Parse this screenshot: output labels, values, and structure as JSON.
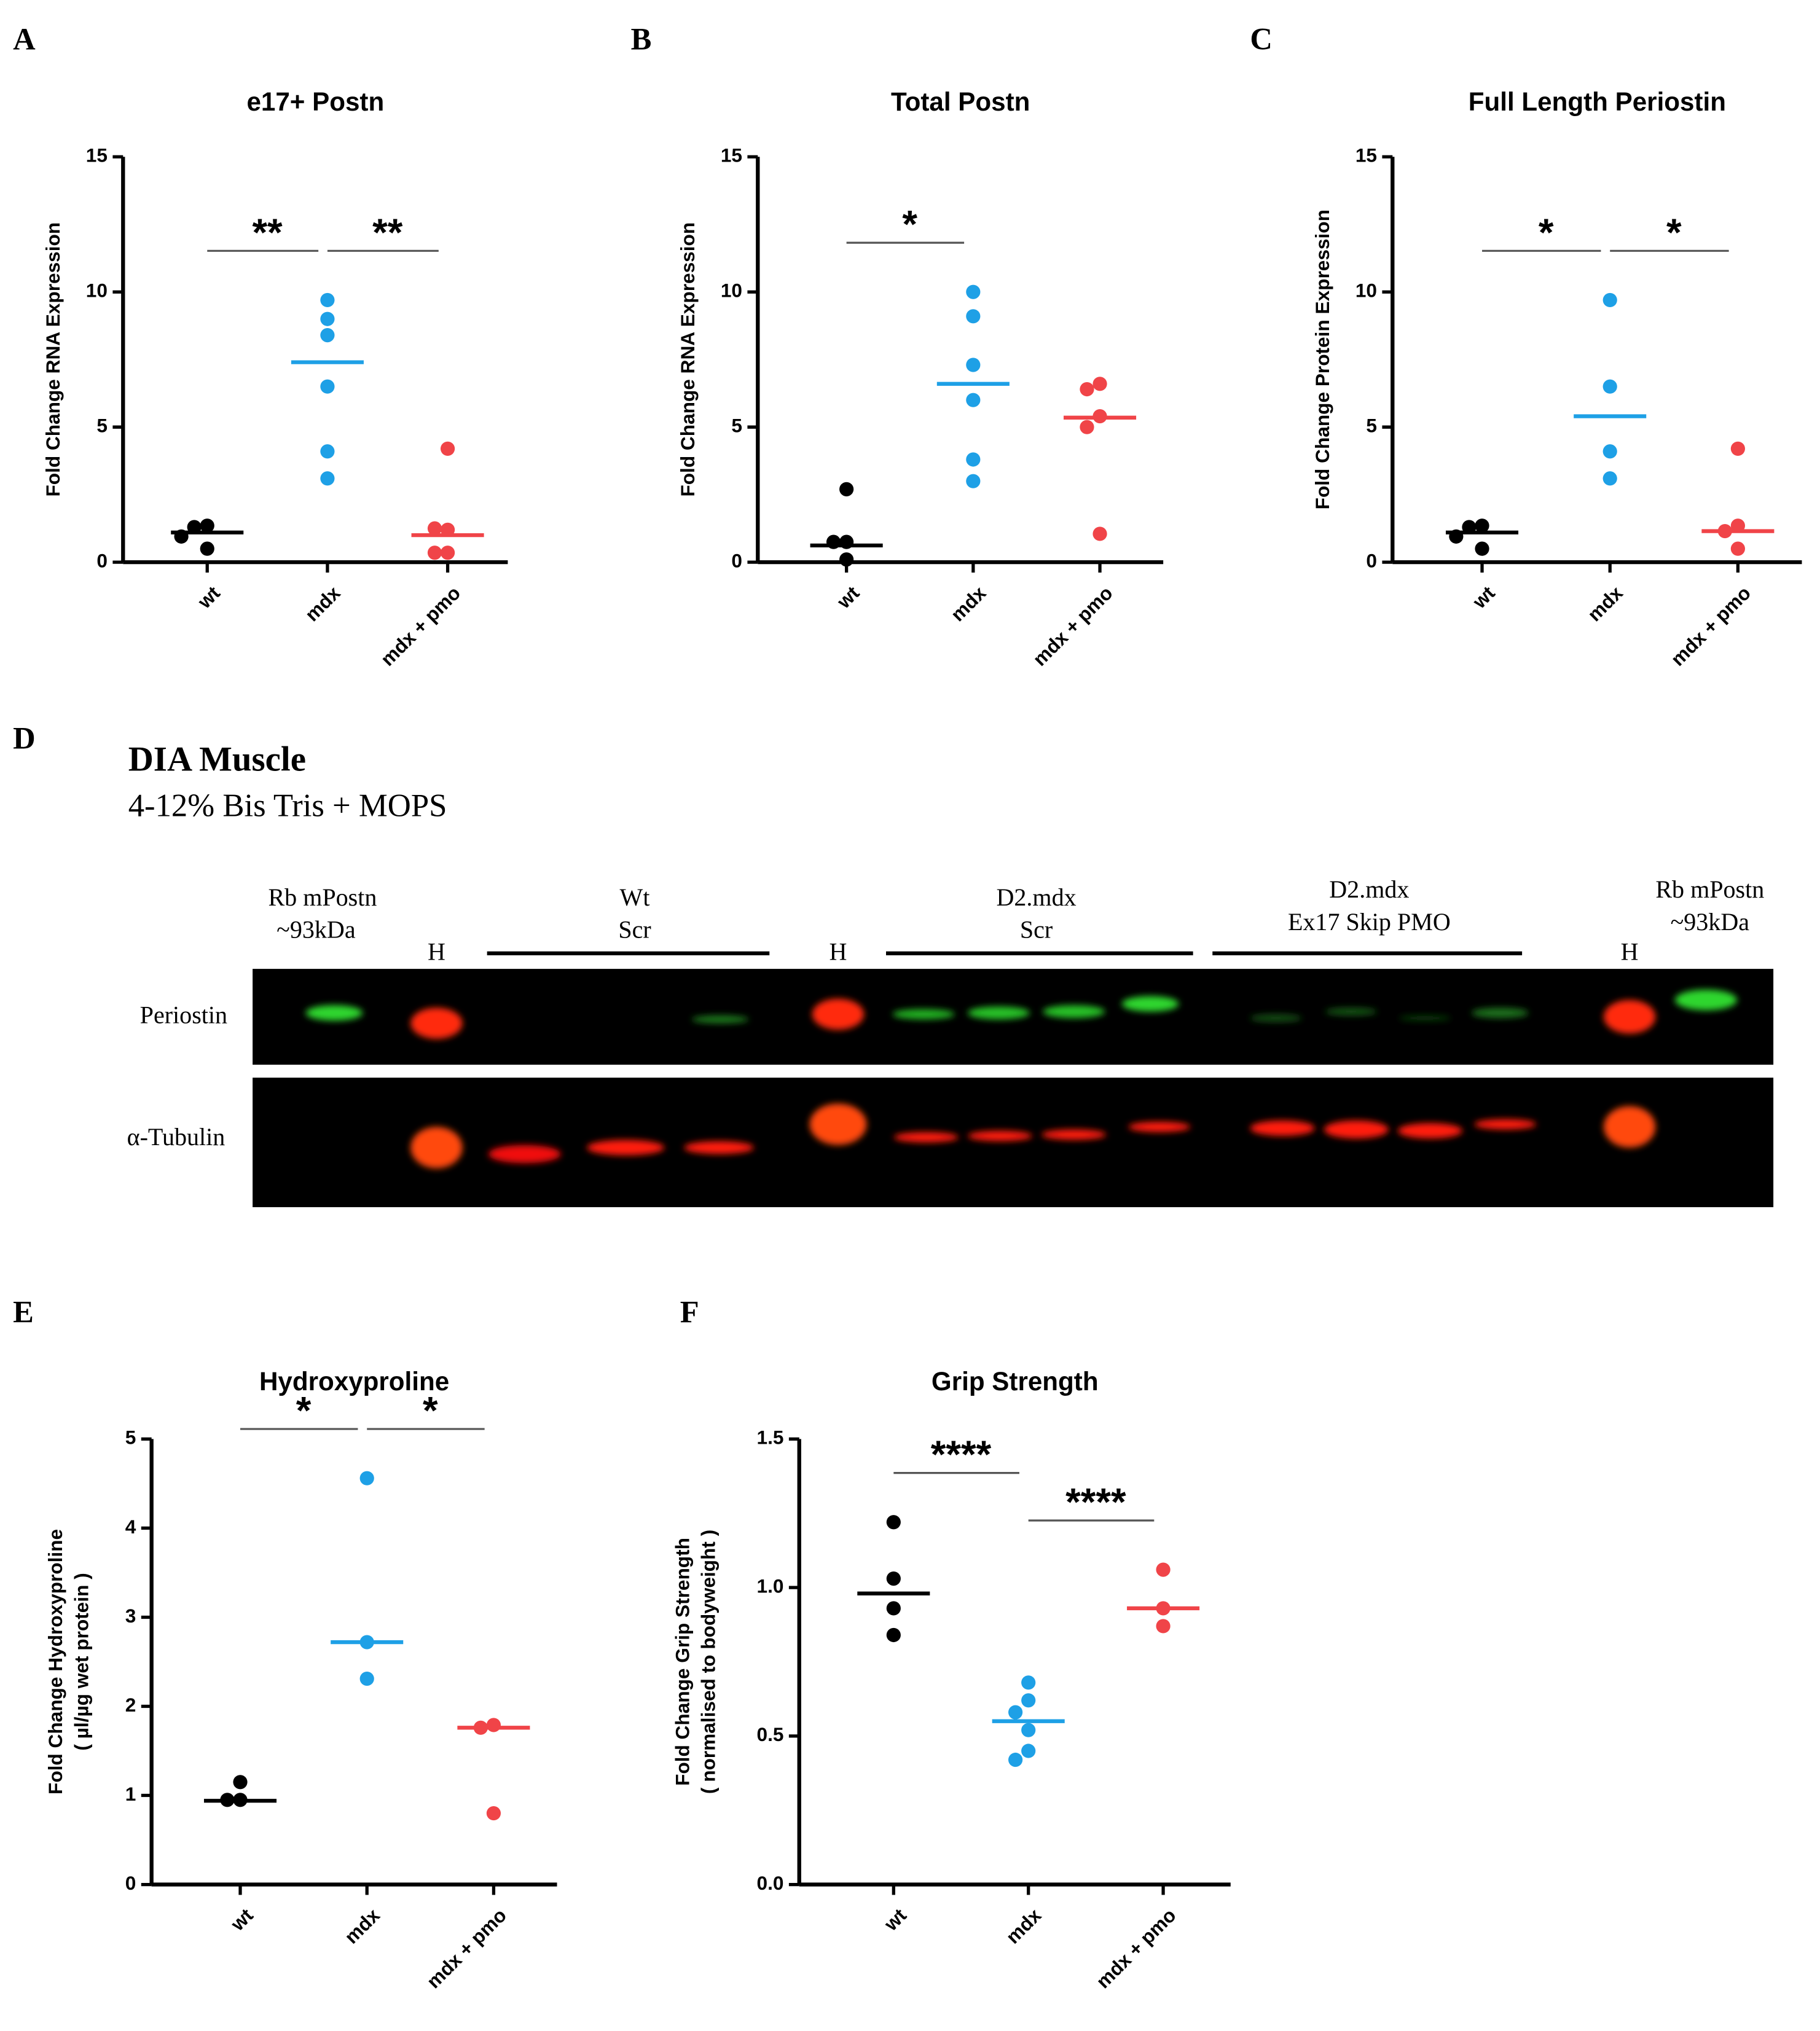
{
  "chart_data": [
    {
      "type": "dotplot",
      "panel": "A",
      "title": "e17+ Postn",
      "ylabel": [
        "Fold Change RNA Expression"
      ],
      "categories": [
        "wt",
        "mdx",
        "mdx + pmo"
      ],
      "colors": [
        "#000000",
        "#1ea0e6",
        "#f04448"
      ],
      "values": [
        [
          1.35,
          1.3,
          0.5,
          0.95
        ],
        [
          9.7,
          9.0,
          8.4,
          6.5,
          4.1,
          3.1
        ],
        [
          4.2,
          1.2,
          1.25,
          0.35,
          0.35
        ]
      ],
      "means": [
        1.1,
        7.4,
        1.0
      ],
      "ylim": [
        0,
        15
      ],
      "yticks": [
        0,
        5,
        10,
        15
      ],
      "significance": [
        {
          "groups": [
            0,
            1
          ],
          "label": "**"
        },
        {
          "groups": [
            1,
            2
          ],
          "label": "**"
        }
      ]
    },
    {
      "type": "dotplot",
      "panel": "B",
      "title": "Total Postn",
      "ylabel": [
        "Fold Change RNA Expression"
      ],
      "categories": [
        "wt",
        "mdx",
        "mdx + pmo"
      ],
      "colors": [
        "#000000",
        "#1ea0e6",
        "#f04448"
      ],
      "values": [
        [
          2.7,
          0.75,
          0.75,
          0.1
        ],
        [
          10.0,
          9.1,
          7.3,
          6.0,
          3.8,
          3.0
        ],
        [
          6.6,
          6.4,
          5.4,
          5.0,
          1.05
        ]
      ],
      "means": [
        0.62,
        6.6,
        5.35
      ],
      "ylim": [
        0,
        15
      ],
      "yticks": [
        0,
        5,
        10,
        15
      ],
      "significance": [
        {
          "groups": [
            0,
            1
          ],
          "label": "*"
        }
      ]
    },
    {
      "type": "dotplot",
      "panel": "C",
      "title": "Full Length Periostin",
      "ylabel": [
        "Fold Change Protein Expression"
      ],
      "categories": [
        "wt",
        "mdx",
        "mdx + pmo"
      ],
      "colors": [
        "#000000",
        "#1ea0e6",
        "#f04448"
      ],
      "values": [
        [
          1.35,
          1.3,
          0.5,
          0.95
        ],
        [
          9.7,
          6.5,
          4.1,
          3.1
        ],
        [
          4.2,
          1.35,
          1.15,
          0.5
        ]
      ],
      "means": [
        1.1,
        5.4,
        1.15
      ],
      "ylim": [
        0,
        15
      ],
      "yticks": [
        0,
        5,
        10,
        15
      ],
      "significance": [
        {
          "groups": [
            0,
            1
          ],
          "label": "*"
        },
        {
          "groups": [
            1,
            2
          ],
          "label": "*"
        }
      ]
    },
    {
      "type": "dotplot",
      "panel": "E",
      "title": "Hydroxyproline",
      "ylabel": [
        "Fold Change Hydroxyproline",
        "( µl/µg wet protein )"
      ],
      "categories": [
        "wt",
        "mdx",
        "mdx + pmo"
      ],
      "colors": [
        "#000000",
        "#1ea0e6",
        "#f04448"
      ],
      "values": [
        [
          1.15,
          0.95,
          0.95
        ],
        [
          4.56,
          2.72,
          2.31
        ],
        [
          1.79,
          1.76,
          0.8
        ]
      ],
      "means": [
        0.94,
        2.72,
        1.76
      ],
      "ylim": [
        0,
        5
      ],
      "yticks": [
        0,
        1,
        2,
        3,
        4,
        5
      ],
      "significance": [
        {
          "groups": [
            0,
            1
          ],
          "label": "*"
        },
        {
          "groups": [
            1,
            2
          ],
          "label": "*"
        }
      ]
    },
    {
      "type": "dotplot",
      "panel": "F",
      "title": "Grip Strength",
      "ylabel": [
        "Fold Change Grip Strength",
        "( normalised to bodyweight )"
      ],
      "categories": [
        "wt",
        "mdx",
        "mdx + pmo"
      ],
      "colors": [
        "#000000",
        "#1ea0e6",
        "#f04448"
      ],
      "values": [
        [
          1.22,
          1.03,
          0.93,
          0.84
        ],
        [
          0.68,
          0.62,
          0.58,
          0.52,
          0.45,
          0.42
        ],
        [
          1.06,
          0.93,
          0.87
        ]
      ],
      "means": [
        0.98,
        0.55,
        0.93
      ],
      "ylim": [
        0,
        1.5
      ],
      "yticks": [
        {
          "value": 0,
          "label": "0.0"
        },
        0.5,
        {
          "value": 1,
          "label": "1.0"
        },
        1.5
      ],
      "significance": [
        {
          "groups": [
            0,
            1
          ],
          "label": "****"
        },
        {
          "groups": [
            1,
            2
          ],
          "label": "****"
        }
      ]
    }
  ],
  "blot": {
    "panel": "D",
    "title": "DIA Muscle",
    "subtitle": "4-12% Bis Tris + MOPS",
    "lane_labels": [
      [
        "Rb mPostn",
        "~93kDa"
      ],
      [
        "H"
      ],
      [
        "Wt",
        "Scr"
      ],
      [
        "H"
      ],
      [
        "D2.mdx",
        "Scr"
      ],
      [
        "D2.mdx",
        "Ex17 Skip PMO"
      ],
      [
        "H"
      ],
      [
        "Rb mPostn",
        "~93kDa"
      ]
    ],
    "rows": [
      "Periostin",
      "α-Tubulin"
    ]
  }
}
